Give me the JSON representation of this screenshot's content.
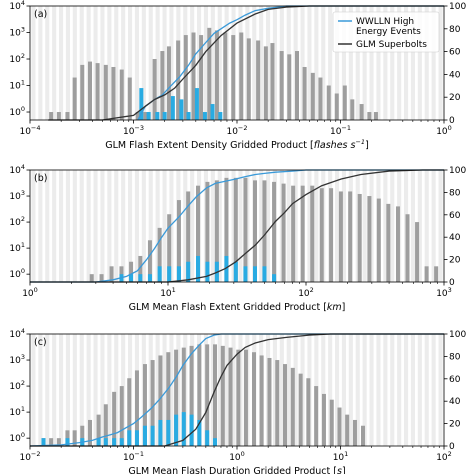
{
  "legend": {
    "items": [
      {
        "label_lines": [
          "WWLLN High",
          "Energy Events"
        ],
        "color": "#3a9ad9"
      },
      {
        "label_lines": [
          "GLM Superbolts"
        ],
        "color": "#333333"
      }
    ]
  },
  "colors": {
    "glm_bars": "#9e9e9e",
    "wwlln_bars": "#29abe2",
    "wwlln_line": "#3a9ad9",
    "glm_line": "#333333",
    "background_stripe": "#ececec"
  },
  "chart_data": [
    {
      "type": "bar",
      "panel_label": "(a)",
      "xlabel_parts": [
        "GLM Flash Extent Density Gridded Product [",
        "flashes s",
        "−1",
        "]"
      ],
      "xscale": "log",
      "xlim": [
        0.0001,
        1
      ],
      "x_ticks": [
        {
          "value": 0.0001,
          "base": "10",
          "exp": "−4"
        },
        {
          "value": 0.001,
          "base": "10",
          "exp": "−3"
        },
        {
          "value": 0.01,
          "base": "10",
          "exp": "−2"
        },
        {
          "value": 0.1,
          "base": "10",
          "exp": "−1"
        },
        {
          "value": 1,
          "base": "10",
          "exp": "0"
        }
      ],
      "yscale": "log",
      "ylim": [
        0.5,
        10000
      ],
      "y_ticks": [
        {
          "value": 1,
          "base": "10",
          "exp": "0"
        },
        {
          "value": 10,
          "base": "10",
          "exp": "1"
        },
        {
          "value": 100,
          "base": "10",
          "exp": "2"
        },
        {
          "value": 1000,
          "base": "10",
          "exp": "3"
        },
        {
          "value": 10000,
          "base": "10",
          "exp": "4"
        }
      ],
      "y2lim": [
        0,
        100
      ],
      "y2_ticks": [
        0,
        20,
        40,
        60,
        80,
        100
      ],
      "bin_range": [
        0.0001,
        1
      ],
      "bin_count": 60,
      "series": [
        {
          "kind": "bars",
          "role": "glm",
          "x": [
            0.00016,
            0.00019,
            0.00023,
            0.00027,
            0.00032,
            0.00038,
            0.00045,
            0.00054,
            0.00064,
            0.00077,
            0.00092,
            0.0011,
            0.0013,
            0.0016,
            0.0019,
            0.0022,
            0.0027,
            0.0032,
            0.0038,
            0.0045,
            0.0054,
            0.0064,
            0.0077,
            0.0092,
            0.011,
            0.013,
            0.016,
            0.019,
            0.022,
            0.027,
            0.032,
            0.038,
            0.045,
            0.054,
            0.064,
            0.077,
            0.092,
            0.11,
            0.13,
            0.16,
            0.19,
            0.22
          ],
          "values": [
            1,
            1,
            1,
            20,
            60,
            80,
            70,
            60,
            50,
            40,
            20,
            1,
            1,
            100,
            200,
            300,
            500,
            800,
            1000,
            800,
            1500,
            1200,
            1000,
            800,
            1000,
            600,
            500,
            300,
            400,
            200,
            150,
            200,
            50,
            30,
            20,
            10,
            5,
            10,
            3,
            2,
            1,
            1
          ]
        },
        {
          "kind": "bars",
          "role": "wwlln",
          "x": [
            0.00119,
            0.0014,
            0.0017,
            0.002,
            0.0024,
            0.0029,
            0.0034,
            0.0041,
            0.0049,
            0.0058,
            0.0069
          ],
          "values": [
            8,
            1,
            1,
            1,
            4,
            3,
            1,
            8,
            1,
            2,
            1
          ]
        },
        {
          "kind": "cumulative",
          "role": "wwlln",
          "x": [
            0.0011,
            0.0013,
            0.0016,
            0.0019,
            0.0023,
            0.0028,
            0.0034,
            0.004,
            0.005,
            0.006,
            0.007,
            0.0085,
            0.01,
            0.012,
            0.015,
            0.02,
            0.025,
            0.03,
            0.04,
            1
          ],
          "values": [
            0,
            12,
            18,
            22,
            30,
            38,
            48,
            58,
            68,
            76,
            80,
            85,
            88,
            92,
            96,
            98,
            99,
            100,
            100,
            100
          ]
        },
        {
          "kind": "cumulative",
          "role": "glm",
          "x": [
            0.00015,
            0.0005,
            0.001,
            0.0013,
            0.0016,
            0.002,
            0.0025,
            0.003,
            0.004,
            0.005,
            0.007,
            0.01,
            0.015,
            0.02,
            0.03,
            0.05,
            0.1,
            1
          ],
          "values": [
            0,
            0,
            4,
            12,
            18,
            22,
            28,
            36,
            48,
            60,
            74,
            85,
            93,
            97,
            99,
            100,
            100,
            100
          ]
        }
      ]
    },
    {
      "type": "bar",
      "panel_label": "(b)",
      "xlabel_parts": [
        "GLM Mean Flash Extent Gridded Product [",
        "km",
        "",
        "]"
      ],
      "xscale": "log",
      "xlim": [
        1,
        1000
      ],
      "x_ticks": [
        {
          "value": 1,
          "base": "10",
          "exp": "0"
        },
        {
          "value": 10,
          "base": "10",
          "exp": "1"
        },
        {
          "value": 100,
          "base": "10",
          "exp": "2"
        },
        {
          "value": 1000,
          "base": "10",
          "exp": "3"
        }
      ],
      "yscale": "log",
      "ylim": [
        0.5,
        10000
      ],
      "y_ticks": [
        {
          "value": 1,
          "base": "10",
          "exp": "0"
        },
        {
          "value": 10,
          "base": "10",
          "exp": "1"
        },
        {
          "value": 100,
          "base": "10",
          "exp": "2"
        },
        {
          "value": 1000,
          "base": "10",
          "exp": "3"
        },
        {
          "value": 10000,
          "base": "10",
          "exp": "4"
        }
      ],
      "y2lim": [
        0,
        100
      ],
      "y2_ticks": [
        0,
        20,
        40,
        60,
        80,
        100
      ],
      "bin_range": [
        1,
        1000
      ],
      "bin_count": 60,
      "series": [
        {
          "kind": "bars",
          "role": "glm",
          "x": [
            2.8,
            3.3,
            3.9,
            4.6,
            5.4,
            6.3,
            7.4,
            8.7,
            10.2,
            12,
            14,
            16.5,
            19.3,
            22.6,
            26.5,
            31,
            36.4,
            42.7,
            50,
            58.7,
            68.8,
            80.7,
            94.6,
            111,
            130,
            152,
            179,
            209,
            245,
            288,
            337,
            395,
            464,
            544,
            638,
            748,
            877
          ],
          "values": [
            1,
            1,
            2,
            2,
            3,
            5,
            20,
            60,
            200,
            700,
            1500,
            2500,
            3500,
            4000,
            5000,
            5000,
            5000,
            4000,
            4000,
            3500,
            3000,
            2500,
            2500,
            2500,
            2000,
            2000,
            1500,
            1500,
            1200,
            1000,
            800,
            500,
            400,
            200,
            100,
            2,
            2
          ]
        },
        {
          "kind": "bars",
          "role": "wwlln",
          "x": [
            4.6,
            5.4,
            6.3,
            7.4,
            8.7,
            10.2,
            12,
            14,
            16.5,
            19.3,
            22.6,
            26.5,
            31,
            36.4,
            42.7,
            50,
            58.7
          ],
          "values": [
            1,
            1,
            1,
            1,
            2,
            2,
            2,
            3,
            5,
            3,
            3,
            5,
            3,
            2,
            2,
            2,
            1
          ]
        },
        {
          "kind": "cumulative",
          "role": "wwlln",
          "x": [
            1,
            3,
            4,
            5,
            6,
            7,
            8,
            9,
            10,
            12,
            14,
            16,
            19,
            22,
            26,
            31,
            36,
            43,
            50,
            60,
            80,
            100,
            130,
            1000
          ],
          "values": [
            0,
            0,
            2,
            5,
            10,
            20,
            30,
            40,
            48,
            58,
            68,
            76,
            84,
            88,
            90,
            92,
            94,
            96,
            97,
            98,
            99,
            100,
            100,
            100
          ]
        },
        {
          "kind": "cumulative",
          "role": "glm",
          "x": [
            1,
            10,
            14,
            19,
            22,
            26,
            31,
            36,
            43,
            50,
            60,
            70,
            80,
            100,
            130,
            180,
            250,
            400,
            700,
            1000
          ],
          "values": [
            0,
            0,
            2,
            5,
            8,
            12,
            18,
            25,
            33,
            42,
            54,
            62,
            70,
            78,
            86,
            92,
            96,
            99,
            100,
            100
          ]
        }
      ]
    },
    {
      "type": "bar",
      "panel_label": "(c)",
      "xlabel_parts": [
        "GLM Mean Flash Duration Gridded Product [",
        "s",
        "",
        "]"
      ],
      "xscale": "log",
      "xlim": [
        0.01,
        100
      ],
      "x_ticks": [
        {
          "value": 0.01,
          "base": "10",
          "exp": "−2"
        },
        {
          "value": 0.1,
          "base": "10",
          "exp": "−1"
        },
        {
          "value": 1,
          "base": "10",
          "exp": "0"
        },
        {
          "value": 10,
          "base": "10",
          "exp": "1"
        },
        {
          "value": 100,
          "base": "10",
          "exp": "2"
        }
      ],
      "yscale": "log",
      "ylim": [
        0.5,
        10000
      ],
      "y_ticks": [
        {
          "value": 1,
          "base": "10",
          "exp": "0"
        },
        {
          "value": 10,
          "base": "10",
          "exp": "1"
        },
        {
          "value": 100,
          "base": "10",
          "exp": "2"
        },
        {
          "value": 1000,
          "base": "10",
          "exp": "3"
        },
        {
          "value": 10000,
          "base": "10",
          "exp": "4"
        }
      ],
      "y2lim": [
        0,
        100
      ],
      "y2_ticks": [
        0,
        20,
        40,
        60,
        80,
        100
      ],
      "bin_range": [
        0.01,
        100
      ],
      "bin_count": 60,
      "series": [
        {
          "kind": "bars",
          "role": "glm",
          "x": [
            0.0135,
            0.016,
            0.019,
            0.023,
            0.027,
            0.032,
            0.038,
            0.046,
            0.054,
            0.065,
            0.077,
            0.091,
            0.108,
            0.129,
            0.153,
            0.182,
            0.217,
            0.258,
            0.306,
            0.364,
            0.433,
            0.515,
            0.613,
            0.729,
            0.866,
            1.03,
            1.22,
            1.46,
            1.73,
            2.06,
            2.45,
            2.91,
            3.46,
            4.12,
            4.89,
            5.82,
            6.92,
            8.23,
            9.78,
            11.6,
            13.8,
            16.5
          ],
          "values": [
            1,
            1,
            1,
            2,
            2,
            3,
            5,
            8,
            20,
            60,
            100,
            200,
            400,
            700,
            1000,
            1500,
            2000,
            2500,
            3000,
            3500,
            4000,
            4000,
            4000,
            3500,
            3000,
            2500,
            2500,
            2000,
            1500,
            1200,
            1000,
            700,
            500,
            300,
            200,
            100,
            50,
            30,
            15,
            8,
            5,
            3
          ]
        },
        {
          "kind": "bars",
          "role": "wwlln",
          "x": [
            0.0135,
            0.023,
            0.032,
            0.046,
            0.054,
            0.065,
            0.077,
            0.091,
            0.108,
            0.129,
            0.153,
            0.182,
            0.217,
            0.258,
            0.306,
            0.364,
            0.433,
            0.515,
            0.613
          ],
          "values": [
            1,
            1,
            1,
            1,
            1,
            1,
            1,
            2,
            2,
            3,
            3,
            5,
            5,
            8,
            10,
            8,
            5,
            2,
            1
          ]
        },
        {
          "kind": "cumulative",
          "role": "wwlln",
          "x": [
            0.01,
            0.02,
            0.03,
            0.04,
            0.05,
            0.06,
            0.07,
            0.08,
            0.1,
            0.12,
            0.15,
            0.18,
            0.22,
            0.26,
            0.3,
            0.36,
            0.43,
            0.5,
            0.6,
            0.7,
            100
          ],
          "values": [
            0,
            1,
            3,
            5,
            8,
            10,
            12,
            15,
            20,
            26,
            34,
            42,
            52,
            62,
            72,
            82,
            90,
            96,
            99,
            100,
            100
          ]
        },
        {
          "kind": "cumulative",
          "role": "glm",
          "x": [
            0.01,
            0.2,
            0.3,
            0.4,
            0.5,
            0.6,
            0.7,
            0.8,
            1,
            1.2,
            1.5,
            2,
            3,
            5,
            8,
            100
          ],
          "values": [
            0,
            0,
            5,
            15,
            30,
            48,
            62,
            72,
            82,
            88,
            92,
            95,
            97,
            99,
            100,
            100
          ]
        }
      ]
    }
  ]
}
